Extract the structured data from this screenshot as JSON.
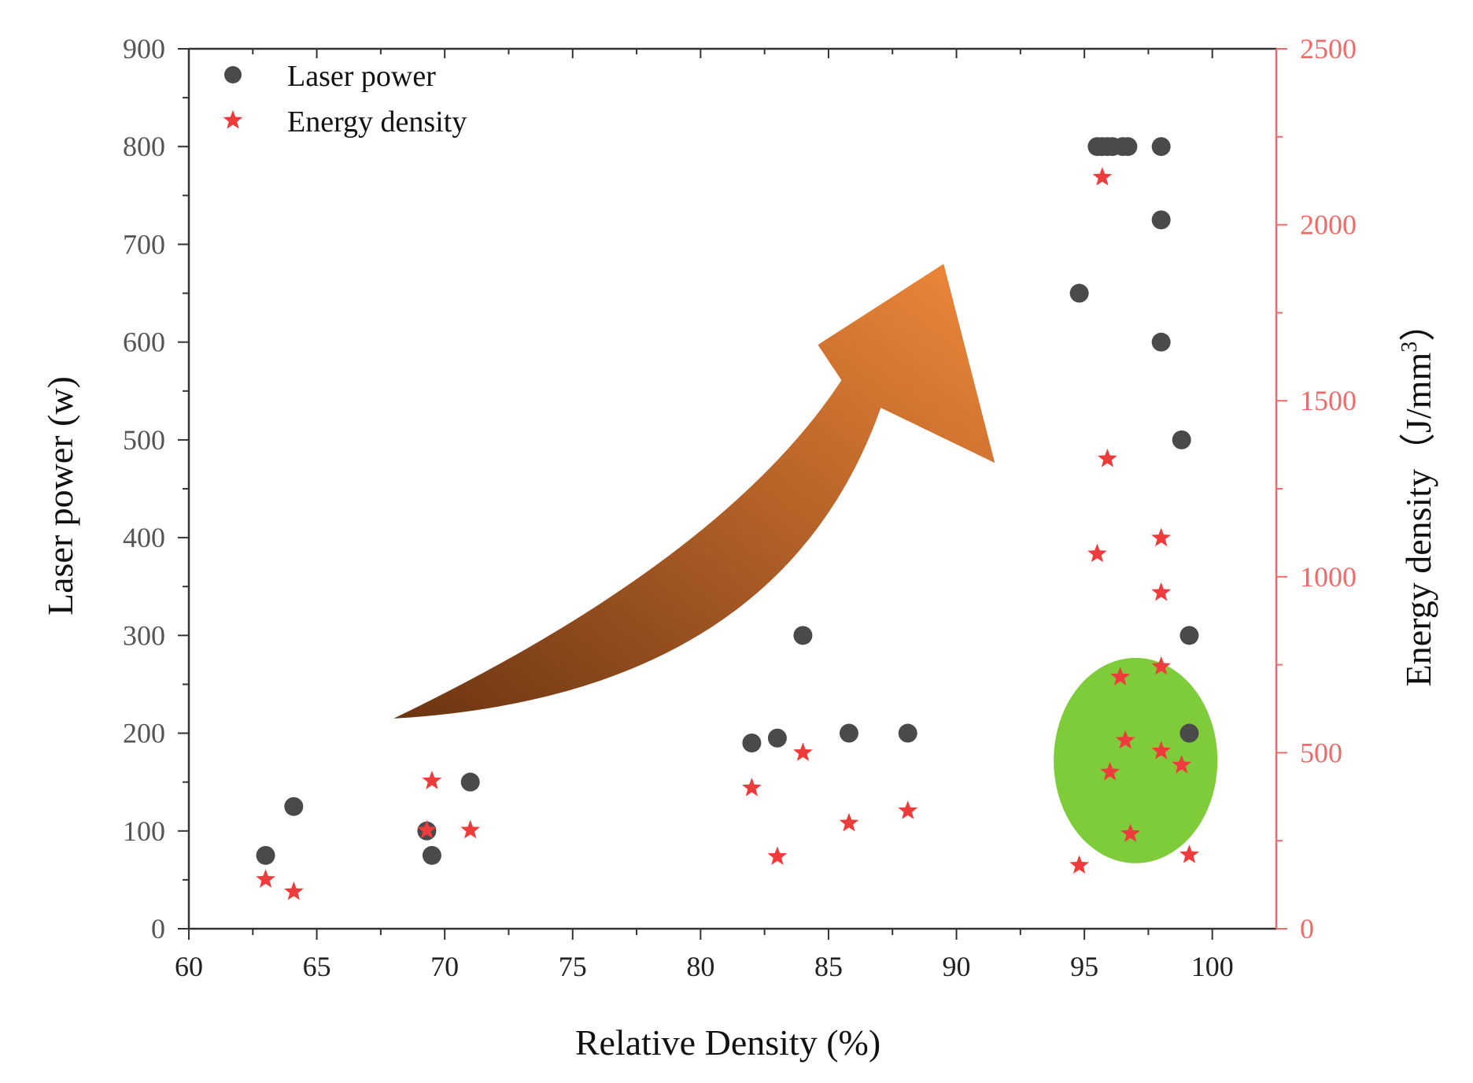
{
  "chart_data": {
    "type": "scatter",
    "title": "",
    "xlabel": "Relative Density (%)",
    "ylabel": "Laser power (w)",
    "y2label": "Energy density",
    "y2label_unit": "（J/mm",
    "y2label_unit_sup": "3",
    "y2label_unit_close": "）",
    "xlim": [
      60,
      102.5
    ],
    "ylim": [
      0,
      900
    ],
    "y2lim": [
      0,
      2500
    ],
    "xticks": [
      60,
      65,
      70,
      75,
      80,
      85,
      90,
      95,
      100
    ],
    "yticks": [
      0,
      100,
      200,
      300,
      400,
      500,
      600,
      700,
      800,
      900
    ],
    "y2ticks": [
      0,
      500,
      1000,
      1500,
      2000,
      2500
    ],
    "legend_position": "top-left",
    "colors": {
      "laser": "#4a4a4a",
      "energy": "#ee3b3b",
      "right_axis": "#f06a6a",
      "arrow_start": "#6b3412",
      "arrow_end": "#f0883a",
      "highlight": "#7fcc3a"
    },
    "series": [
      {
        "name": "Laser power",
        "axis": "left",
        "marker": "circle",
        "points": [
          {
            "x": 63.0,
            "y": 75
          },
          {
            "x": 64.1,
            "y": 125
          },
          {
            "x": 69.3,
            "y": 100
          },
          {
            "x": 69.5,
            "y": 75
          },
          {
            "x": 71.0,
            "y": 150
          },
          {
            "x": 82.0,
            "y": 190
          },
          {
            "x": 83.0,
            "y": 195
          },
          {
            "x": 84.0,
            "y": 300
          },
          {
            "x": 85.8,
            "y": 200
          },
          {
            "x": 88.1,
            "y": 200
          },
          {
            "x": 94.8,
            "y": 650
          },
          {
            "x": 95.5,
            "y": 800
          },
          {
            "x": 95.7,
            "y": 800
          },
          {
            "x": 95.9,
            "y": 800
          },
          {
            "x": 96.1,
            "y": 800
          },
          {
            "x": 96.5,
            "y": 800
          },
          {
            "x": 96.7,
            "y": 800
          },
          {
            "x": 98.0,
            "y": 800
          },
          {
            "x": 98.0,
            "y": 725
          },
          {
            "x": 98.0,
            "y": 600
          },
          {
            "x": 98.8,
            "y": 500
          },
          {
            "x": 99.1,
            "y": 300
          },
          {
            "x": 99.1,
            "y": 200
          }
        ]
      },
      {
        "name": "Energy density",
        "axis": "right",
        "marker": "star",
        "points": [
          {
            "x": 63.0,
            "y": 140
          },
          {
            "x": 64.1,
            "y": 105
          },
          {
            "x": 69.3,
            "y": 280
          },
          {
            "x": 69.5,
            "y": 420
          },
          {
            "x": 71.0,
            "y": 280
          },
          {
            "x": 82.0,
            "y": 400
          },
          {
            "x": 83.0,
            "y": 205
          },
          {
            "x": 84.0,
            "y": 500
          },
          {
            "x": 85.8,
            "y": 300
          },
          {
            "x": 88.1,
            "y": 335
          },
          {
            "x": 94.8,
            "y": 180
          },
          {
            "x": 95.5,
            "y": 1065
          },
          {
            "x": 95.7,
            "y": 2135
          },
          {
            "x": 95.9,
            "y": 1335
          },
          {
            "x": 96.0,
            "y": 445
          },
          {
            "x": 96.4,
            "y": 715
          },
          {
            "x": 96.6,
            "y": 535
          },
          {
            "x": 96.8,
            "y": 270
          },
          {
            "x": 98.0,
            "y": 1110
          },
          {
            "x": 98.0,
            "y": 955
          },
          {
            "x": 98.0,
            "y": 745
          },
          {
            "x": 98.0,
            "y": 505
          },
          {
            "x": 98.8,
            "y": 465
          },
          {
            "x": 99.1,
            "y": 210
          }
        ]
      }
    ],
    "annotations": [
      {
        "type": "curved-arrow",
        "description": "upward trend arrow",
        "from_x": 68.0,
        "from_y": 215,
        "to_x": 89.5,
        "to_y": 680
      },
      {
        "type": "ellipse",
        "description": "green highlight region",
        "cx": 97.0,
        "cy": 172,
        "rx": 3.2,
        "ry": 105
      }
    ]
  }
}
